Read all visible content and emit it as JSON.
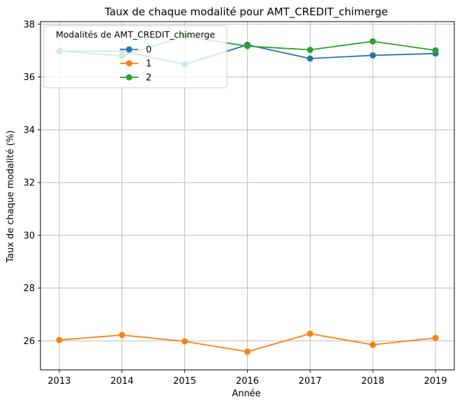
{
  "chart_data": {
    "type": "line",
    "title": "Taux de chaque modalité pour AMT_CREDIT_chimerge",
    "xlabel": "Année",
    "ylabel": "Taux de chaque modalité (%)",
    "x": [
      2013,
      2014,
      2015,
      2016,
      2017,
      2018,
      2019
    ],
    "xlim": [
      2012.7,
      2019.3
    ],
    "ylim": [
      24.9,
      38.1
    ],
    "yticks": [
      26,
      28,
      30,
      32,
      34,
      36,
      38
    ],
    "grid": true,
    "legend": {
      "title": "Modalités de AMT_CREDIT_chimerge",
      "placement": "upper-left"
    },
    "series": [
      {
        "name": "0",
        "color": "#1f77b4",
        "values": [
          36.98,
          36.98,
          36.48,
          37.22,
          36.7,
          36.82,
          36.89
        ]
      },
      {
        "name": "1",
        "color": "#ff7f0e",
        "values": [
          26.03,
          26.22,
          25.98,
          25.59,
          26.27,
          25.85,
          26.11
        ]
      },
      {
        "name": "2",
        "color": "#2ca02c",
        "values": [
          36.99,
          36.8,
          37.54,
          37.17,
          37.03,
          37.35,
          37.01
        ]
      }
    ]
  }
}
